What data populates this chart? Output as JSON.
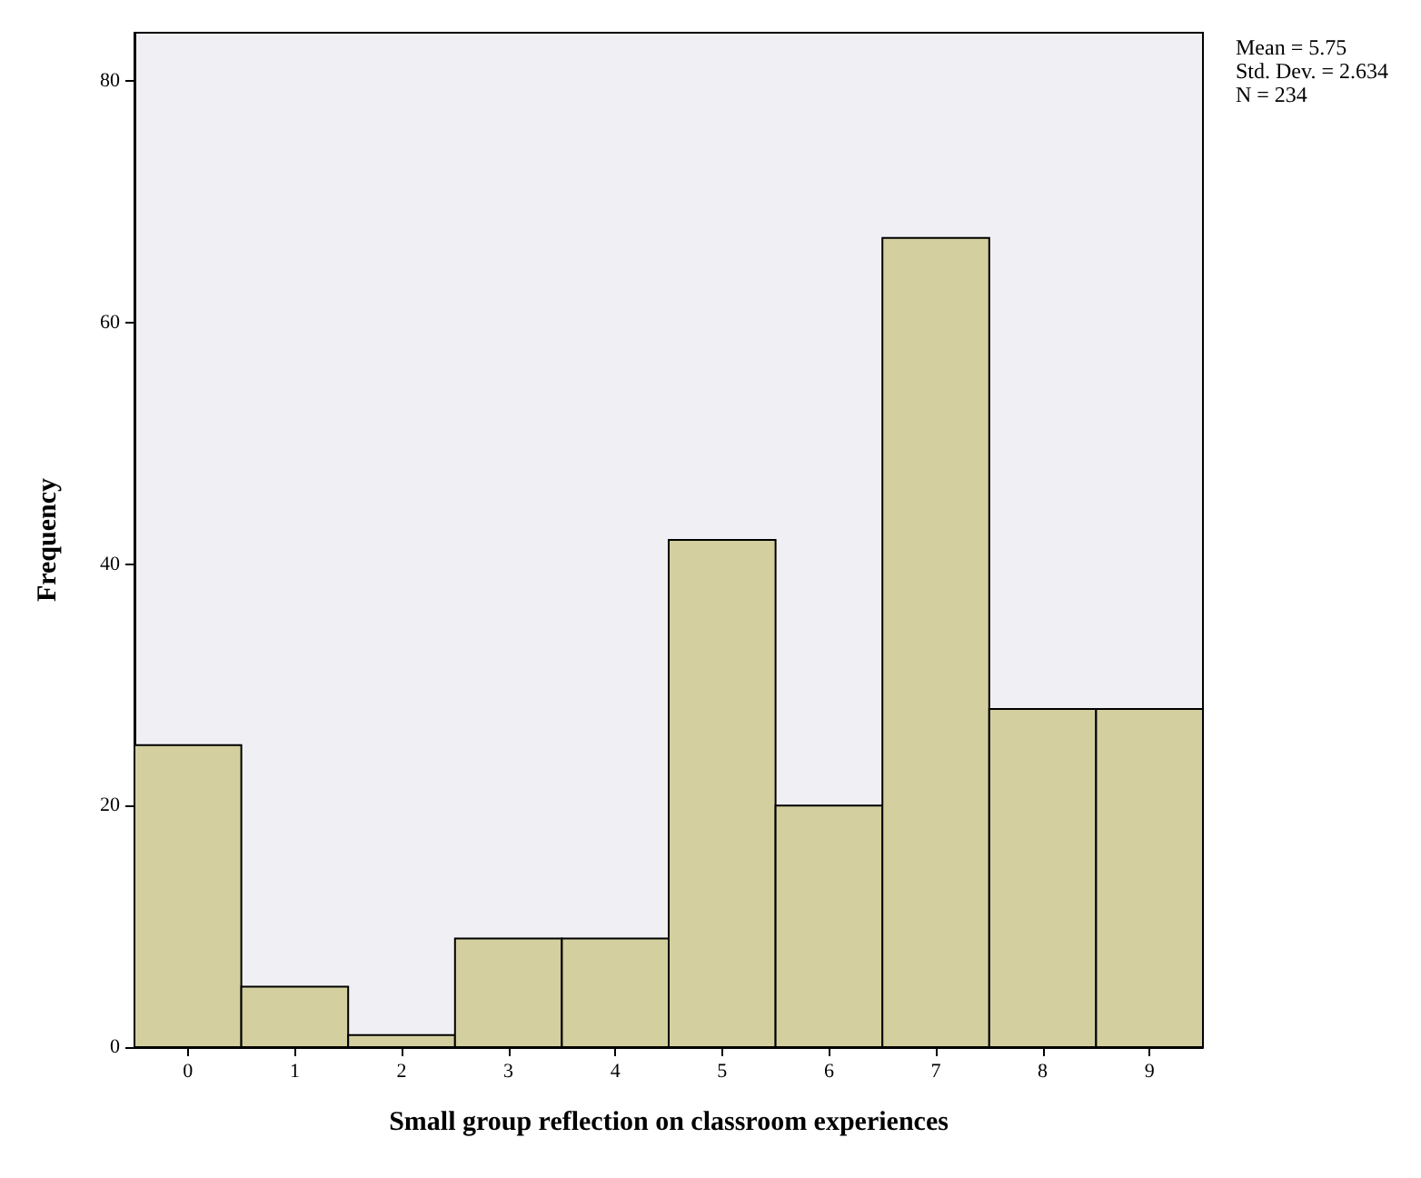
{
  "chart_data": {
    "type": "histogram",
    "xlabel": "Small group reflection on classroom experiences",
    "ylabel": "Frequency",
    "bins": [
      -0.5,
      0.5,
      1.5,
      2.5,
      3.5,
      4.5,
      5.5,
      6.5,
      7.5,
      8.5,
      9.5
    ],
    "values": [
      25,
      5,
      1,
      9,
      9,
      42,
      20,
      67,
      28,
      28
    ],
    "color": "#d3cf9f",
    "xlim": [
      -0.5,
      9.5
    ],
    "xticks": [
      0,
      1,
      2,
      3,
      4,
      5,
      6,
      7,
      8,
      9
    ],
    "ylim": [
      0,
      84
    ],
    "yticks": [
      0,
      20,
      40,
      60,
      80
    ],
    "grid": false,
    "annotations": [
      "Mean = 5.75",
      "Std. Dev. = 2.634",
      "N = 234"
    ]
  }
}
